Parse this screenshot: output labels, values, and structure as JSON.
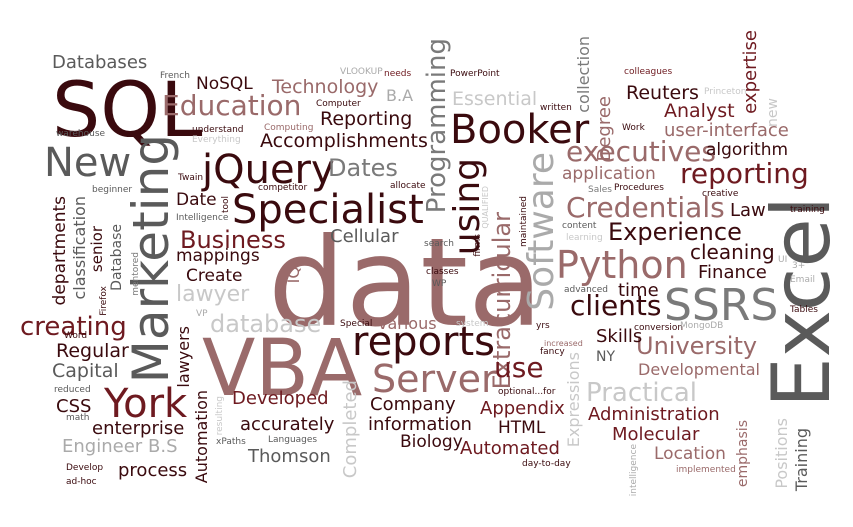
{
  "palette": {
    "dark": "#3a0a0e",
    "maroon": "#6e1a20",
    "red": "#7e2428",
    "mauve": "#9a6a6a",
    "rose": "#b89898",
    "slate": "#5a5a5a",
    "grey": "#7a7a7a",
    "silver": "#aaaaaa",
    "light": "#c8c8c8"
  },
  "words": [
    {
      "text": "data"
    },
    {
      "text": "SQL"
    },
    {
      "text": "VBA"
    },
    {
      "text": "Excel"
    },
    {
      "text": "Marketing"
    },
    {
      "text": "Specialist"
    },
    {
      "text": "jQuery"
    },
    {
      "text": "Booker"
    },
    {
      "text": "reports"
    },
    {
      "text": "Python"
    },
    {
      "text": "SSRS"
    },
    {
      "text": "Server"
    },
    {
      "text": "York"
    },
    {
      "text": "New"
    },
    {
      "text": "Software"
    },
    {
      "text": "using"
    },
    {
      "text": "Education"
    },
    {
      "text": "executives"
    },
    {
      "text": "reporting"
    },
    {
      "text": "Credentials"
    },
    {
      "text": "Experience"
    },
    {
      "text": "clients"
    },
    {
      "text": "Programming"
    },
    {
      "text": "Business"
    },
    {
      "text": "creating"
    },
    {
      "text": "Practical"
    },
    {
      "text": "University"
    },
    {
      "text": "Databases"
    },
    {
      "text": "NoSQL"
    },
    {
      "text": "Technology"
    },
    {
      "text": "Accomplishments"
    },
    {
      "text": "Reporting"
    },
    {
      "text": "Essential"
    },
    {
      "text": "collection"
    },
    {
      "text": "Degree"
    },
    {
      "text": "Reuters"
    },
    {
      "text": "Analyst"
    },
    {
      "text": "expertise"
    },
    {
      "text": "user-interface"
    },
    {
      "text": "algorithm"
    },
    {
      "text": "application"
    },
    {
      "text": "Dates"
    },
    {
      "text": "Date"
    },
    {
      "text": "departments"
    },
    {
      "text": "classification"
    },
    {
      "text": "senior"
    },
    {
      "text": "Database"
    },
    {
      "text": "Cellular"
    },
    {
      "text": "mappings"
    },
    {
      "text": "Create"
    },
    {
      "text": "lawyer"
    },
    {
      "text": "database"
    },
    {
      "text": "IQ"
    },
    {
      "text": "Extracurricular"
    },
    {
      "text": "cleaning"
    },
    {
      "text": "Finance"
    },
    {
      "text": "time"
    },
    {
      "text": "Skills"
    },
    {
      "text": "Law"
    },
    {
      "text": "Regular"
    },
    {
      "text": "Capital"
    },
    {
      "text": "CSS"
    },
    {
      "text": "enterprise"
    },
    {
      "text": "Engineer"
    },
    {
      "text": "B.S"
    },
    {
      "text": "process"
    },
    {
      "text": "Automation"
    },
    {
      "text": "lawyers"
    },
    {
      "text": "Developed"
    },
    {
      "text": "accurately"
    },
    {
      "text": "Thomson"
    },
    {
      "text": "Completed"
    },
    {
      "text": "Company"
    },
    {
      "text": "information"
    },
    {
      "text": "Biology"
    },
    {
      "text": "Appendix"
    },
    {
      "text": "HTML"
    },
    {
      "text": "Automated"
    },
    {
      "text": "Expressions"
    },
    {
      "text": "Administration"
    },
    {
      "text": "Molecular"
    },
    {
      "text": "Location"
    },
    {
      "text": "Developmental"
    },
    {
      "text": "Positions"
    },
    {
      "text": "Training"
    },
    {
      "text": "emphasis"
    },
    {
      "text": "use"
    },
    {
      "text": "various"
    },
    {
      "text": "French"
    },
    {
      "text": "VLOOKUP"
    },
    {
      "text": "needs"
    },
    {
      "text": "PowerPoint"
    },
    {
      "text": "colleagues"
    },
    {
      "text": "Princeton"
    },
    {
      "text": "B.A"
    },
    {
      "text": "Computer"
    },
    {
      "text": "Computing"
    },
    {
      "text": "understand"
    },
    {
      "text": "Everything"
    },
    {
      "text": "warehouse"
    },
    {
      "text": "Twain"
    },
    {
      "text": "beginner"
    },
    {
      "text": "competitor"
    },
    {
      "text": "Intelligence"
    },
    {
      "text": "tool"
    },
    {
      "text": "allocate"
    },
    {
      "text": "written"
    },
    {
      "text": "Work"
    },
    {
      "text": "new"
    },
    {
      "text": "Sales"
    },
    {
      "text": "Procedures"
    },
    {
      "text": "creative"
    },
    {
      "text": "training"
    },
    {
      "text": "learning"
    },
    {
      "text": "content"
    },
    {
      "text": "search"
    },
    {
      "text": "firms"
    },
    {
      "text": "maintained"
    },
    {
      "text": "QUALIFIED"
    },
    {
      "text": "classes"
    },
    {
      "text": "WP"
    },
    {
      "text": "mentored"
    },
    {
      "text": "Firefox"
    },
    {
      "text": "Word"
    },
    {
      "text": "VP"
    },
    {
      "text": "Special"
    },
    {
      "text": "system"
    },
    {
      "text": "yrs"
    },
    {
      "text": "advanced"
    },
    {
      "text": "fancy"
    },
    {
      "text": "conversion"
    },
    {
      "text": "MongoDB"
    },
    {
      "text": "NY"
    },
    {
      "text": "Tables"
    },
    {
      "text": "Email"
    },
    {
      "text": "UI"
    },
    {
      "text": "3+"
    },
    {
      "text": "reduced"
    },
    {
      "text": "math"
    },
    {
      "text": "Develop"
    },
    {
      "text": "ad-hoc"
    },
    {
      "text": "xPaths"
    },
    {
      "text": "Languages"
    },
    {
      "text": "resulting"
    },
    {
      "text": "optional...for"
    },
    {
      "text": "day-to-day"
    },
    {
      "text": "implemented"
    },
    {
      "text": "intelligence"
    },
    {
      "text": "increased"
    }
  ]
}
